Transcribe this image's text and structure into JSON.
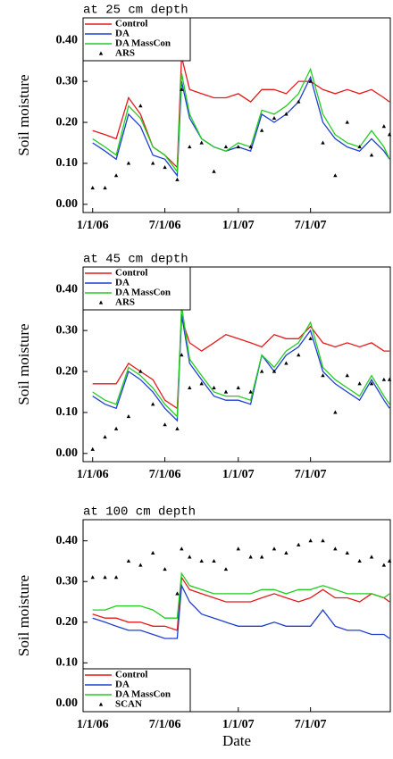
{
  "chart_data": [
    {
      "type": "line",
      "title": "at 25 cm depth",
      "y_label": "Soil moisture",
      "legend": "upper left",
      "xlim": [
        "2005-12-08",
        "2008-01-17"
      ],
      "ylim": [
        -0.02,
        0.455
      ],
      "xticks": [
        {
          "value": "2006-01-01",
          "label": "1/1/06"
        },
        {
          "value": "2006-07-01",
          "label": "7/1/06"
        },
        {
          "value": "2007-01-01",
          "label": "1/1/07"
        },
        {
          "value": "2007-07-01",
          "label": "7/1/07"
        }
      ],
      "yticks": [
        {
          "value": 0,
          "label": "0.00"
        },
        {
          "value": 0.1,
          "label": "0.10"
        },
        {
          "value": 0.2,
          "label": "0.20"
        },
        {
          "value": 0.3,
          "label": "0.30"
        },
        {
          "value": 0.4,
          "label": "0.40"
        }
      ],
      "x": [
        "2006-01-01",
        "2006-02-01",
        "2006-03-01",
        "2006-04-01",
        "2006-05-01",
        "2006-06-01",
        "2006-07-01",
        "2006-08-01",
        "2006-08-12",
        "2006-09-01",
        "2006-10-01",
        "2006-11-01",
        "2006-12-01",
        "2007-01-01",
        "2007-02-01",
        "2007-03-01",
        "2007-04-01",
        "2007-05-01",
        "2007-06-01",
        "2007-07-01",
        "2007-08-01",
        "2007-09-01",
        "2007-10-01",
        "2007-11-01",
        "2007-12-01",
        "2008-01-01",
        "2008-01-15"
      ],
      "series": [
        {
          "name": "Control",
          "color": "#e41a1c",
          "values": [
            0.18,
            0.17,
            0.16,
            0.26,
            0.22,
            0.14,
            0.12,
            0.09,
            0.36,
            0.28,
            0.27,
            0.26,
            0.26,
            0.27,
            0.25,
            0.28,
            0.28,
            0.27,
            0.3,
            0.3,
            0.28,
            0.27,
            0.28,
            0.27,
            0.28,
            0.26,
            0.25
          ]
        },
        {
          "name": "DA",
          "color": "#1f3fd0",
          "values": [
            0.15,
            0.13,
            0.11,
            0.22,
            0.19,
            0.12,
            0.11,
            0.07,
            0.3,
            0.21,
            0.16,
            0.14,
            0.13,
            0.14,
            0.13,
            0.22,
            0.2,
            0.22,
            0.25,
            0.31,
            0.2,
            0.16,
            0.14,
            0.13,
            0.16,
            0.13,
            0.11
          ]
        },
        {
          "name": "DA MassCon",
          "color": "#22cc22",
          "values": [
            0.16,
            0.14,
            0.12,
            0.24,
            0.21,
            0.14,
            0.12,
            0.08,
            0.32,
            0.22,
            0.16,
            0.14,
            0.13,
            0.15,
            0.14,
            0.23,
            0.22,
            0.24,
            0.27,
            0.33,
            0.22,
            0.17,
            0.15,
            0.14,
            0.18,
            0.14,
            0.11
          ]
        },
        {
          "name": "ARS",
          "color": "#000000",
          "mode": "markers",
          "values": [
            0.04,
            0.04,
            0.07,
            0.1,
            0.24,
            0.1,
            0.09,
            0.06,
            0.28,
            0.14,
            0.15,
            0.08,
            0.14,
            0.14,
            0.14,
            0.18,
            0.21,
            0.22,
            0.25,
            0.3,
            0.15,
            0.07,
            0.2,
            0.14,
            0.12,
            0.19,
            0.17
          ]
        }
      ]
    },
    {
      "type": "line",
      "title": "at 45 cm depth",
      "y_label": "Soil moisture",
      "legend": "upper left",
      "xlim": [
        "2005-12-08",
        "2008-01-17"
      ],
      "ylim": [
        -0.02,
        0.455
      ],
      "xticks": [
        {
          "value": "2006-01-01",
          "label": "1/1/06"
        },
        {
          "value": "2006-07-01",
          "label": "7/1/06"
        },
        {
          "value": "2007-01-01",
          "label": "1/1/07"
        },
        {
          "value": "2007-07-01",
          "label": "7/1/07"
        }
      ],
      "yticks": [
        {
          "value": 0,
          "label": "0.00"
        },
        {
          "value": 0.1,
          "label": "0.10"
        },
        {
          "value": 0.2,
          "label": "0.20"
        },
        {
          "value": 0.3,
          "label": "0.30"
        },
        {
          "value": 0.4,
          "label": "0.40"
        }
      ],
      "x": [
        "2006-01-01",
        "2006-02-01",
        "2006-03-01",
        "2006-04-01",
        "2006-05-01",
        "2006-06-01",
        "2006-07-01",
        "2006-08-01",
        "2006-08-12",
        "2006-09-01",
        "2006-10-01",
        "2006-11-01",
        "2006-12-01",
        "2007-01-01",
        "2007-02-01",
        "2007-03-01",
        "2007-04-01",
        "2007-05-01",
        "2007-06-01",
        "2007-07-01",
        "2007-08-01",
        "2007-09-01",
        "2007-10-01",
        "2007-11-01",
        "2007-12-01",
        "2008-01-01",
        "2008-01-15"
      ],
      "series": [
        {
          "name": "Control",
          "color": "#e41a1c",
          "values": [
            0.17,
            0.17,
            0.17,
            0.22,
            0.2,
            0.18,
            0.13,
            0.11,
            0.33,
            0.27,
            0.25,
            0.27,
            0.29,
            0.28,
            0.27,
            0.26,
            0.29,
            0.28,
            0.28,
            0.31,
            0.27,
            0.26,
            0.27,
            0.26,
            0.27,
            0.25,
            0.25
          ]
        },
        {
          "name": "DA",
          "color": "#1f3fd0",
          "values": [
            0.14,
            0.12,
            0.11,
            0.2,
            0.18,
            0.15,
            0.11,
            0.08,
            0.34,
            0.22,
            0.18,
            0.14,
            0.13,
            0.13,
            0.12,
            0.24,
            0.2,
            0.24,
            0.26,
            0.3,
            0.2,
            0.17,
            0.15,
            0.13,
            0.18,
            0.13,
            0.11
          ]
        },
        {
          "name": "DA MassCon",
          "color": "#22cc22",
          "values": [
            0.15,
            0.13,
            0.12,
            0.21,
            0.19,
            0.16,
            0.12,
            0.09,
            0.36,
            0.23,
            0.19,
            0.15,
            0.14,
            0.14,
            0.13,
            0.24,
            0.21,
            0.25,
            0.27,
            0.32,
            0.21,
            0.18,
            0.16,
            0.14,
            0.19,
            0.14,
            0.12
          ]
        },
        {
          "name": "ARS",
          "color": "#000000",
          "mode": "markers",
          "values": [
            0.01,
            0.04,
            0.06,
            0.09,
            0.2,
            0.12,
            0.07,
            0.06,
            0.24,
            0.16,
            0.17,
            0.16,
            0.15,
            0.16,
            0.15,
            0.2,
            0.2,
            0.22,
            0.24,
            0.28,
            0.19,
            0.1,
            0.19,
            0.17,
            0.17,
            0.18,
            0.18
          ]
        }
      ]
    },
    {
      "type": "line",
      "title": "at 100 cm depth",
      "y_label": "Soil moisture",
      "x_label": "Date",
      "legend": "lower left",
      "xlim": [
        "2005-12-08",
        "2008-01-17"
      ],
      "ylim": [
        -0.02,
        0.452
      ],
      "xticks": [
        {
          "value": "2006-01-01",
          "label": "1/1/06"
        },
        {
          "value": "2006-07-01",
          "label": "7/1/06"
        },
        {
          "value": "2007-01-01",
          "label": "1/1/07"
        },
        {
          "value": "2007-07-01",
          "label": "7/1/07"
        }
      ],
      "yticks": [
        {
          "value": 0,
          "label": "0.00"
        },
        {
          "value": 0.1,
          "label": "0.10"
        },
        {
          "value": 0.2,
          "label": "0.20"
        },
        {
          "value": 0.3,
          "label": "0.30"
        },
        {
          "value": 0.4,
          "label": "0.40"
        }
      ],
      "x": [
        "2006-01-01",
        "2006-02-01",
        "2006-03-01",
        "2006-04-01",
        "2006-05-01",
        "2006-06-01",
        "2006-07-01",
        "2006-08-01",
        "2006-08-12",
        "2006-09-01",
        "2006-10-01",
        "2006-11-01",
        "2006-12-01",
        "2007-01-01",
        "2007-02-01",
        "2007-03-01",
        "2007-04-01",
        "2007-05-01",
        "2007-06-01",
        "2007-07-01",
        "2007-08-01",
        "2007-09-01",
        "2007-10-01",
        "2007-11-01",
        "2007-12-01",
        "2008-01-01",
        "2008-01-15"
      ],
      "series": [
        {
          "name": "Control",
          "color": "#e41a1c",
          "values": [
            0.22,
            0.21,
            0.21,
            0.2,
            0.2,
            0.19,
            0.19,
            0.18,
            0.31,
            0.28,
            0.27,
            0.26,
            0.25,
            0.25,
            0.25,
            0.26,
            0.27,
            0.26,
            0.25,
            0.26,
            0.28,
            0.26,
            0.26,
            0.25,
            0.27,
            0.26,
            0.25
          ]
        },
        {
          "name": "DA",
          "color": "#1f3fd0",
          "values": [
            0.21,
            0.2,
            0.19,
            0.18,
            0.18,
            0.17,
            0.16,
            0.16,
            0.29,
            0.25,
            0.22,
            0.21,
            0.2,
            0.19,
            0.19,
            0.19,
            0.2,
            0.19,
            0.19,
            0.19,
            0.23,
            0.19,
            0.18,
            0.18,
            0.17,
            0.17,
            0.16
          ]
        },
        {
          "name": "DA MassCon",
          "color": "#22cc22",
          "values": [
            0.23,
            0.23,
            0.24,
            0.24,
            0.24,
            0.23,
            0.21,
            0.21,
            0.32,
            0.29,
            0.28,
            0.27,
            0.27,
            0.27,
            0.27,
            0.28,
            0.28,
            0.27,
            0.28,
            0.28,
            0.29,
            0.28,
            0.27,
            0.27,
            0.27,
            0.26,
            0.27
          ]
        },
        {
          "name": "SCAN",
          "color": "#000000",
          "mode": "markers",
          "values": [
            0.31,
            0.31,
            0.31,
            0.35,
            0.34,
            0.37,
            0.33,
            0.27,
            0.38,
            0.36,
            0.35,
            0.35,
            0.33,
            0.38,
            0.36,
            0.36,
            0.38,
            0.37,
            0.39,
            0.4,
            0.4,
            0.38,
            0.37,
            0.35,
            0.36,
            0.34,
            0.35
          ]
        }
      ]
    }
  ]
}
